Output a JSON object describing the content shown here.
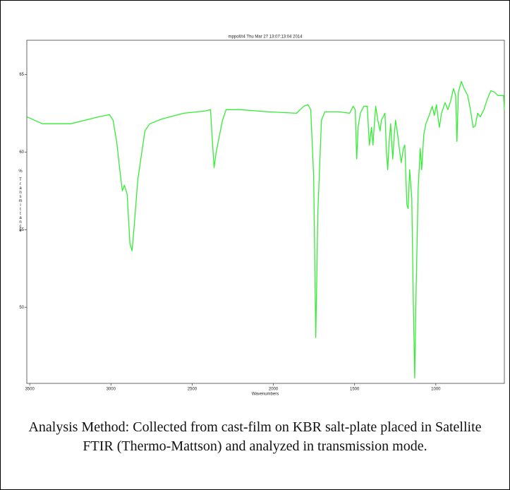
{
  "chart_data": {
    "type": "line",
    "title": "mppoll#4  Thu Mar 27 13:07:13:04 2014",
    "x_label": "Wavenumbers",
    "y_label": "% Transmittance",
    "color": "#33ee33",
    "xlim": [
      3518,
      578
    ],
    "ylim": [
      45.1,
      67.2
    ],
    "xticks": [
      3500,
      3000,
      2500,
      2000,
      1500,
      1000
    ],
    "yticks": [
      50,
      55,
      60,
      65
    ],
    "x": [
      3517,
      3422,
      3248,
      3074,
      3009,
      2987,
      2965,
      2943,
      2930,
      2917,
      2900,
      2883,
      2870,
      2857,
      2835,
      2813,
      2791,
      2761,
      2683,
      2552,
      2422,
      2387,
      2378,
      2365,
      2352,
      2335,
      2313,
      2291,
      2204,
      2030,
      1857,
      1835,
      1813,
      1787,
      1770,
      1752,
      1739,
      1726,
      1704,
      1683,
      1596,
      1530,
      1509,
      1496,
      1487,
      1478,
      1465,
      1443,
      1422,
      1409,
      1396,
      1387,
      1378,
      1370,
      1357,
      1343,
      1335,
      1313,
      1304,
      1296,
      1287,
      1278,
      1265,
      1257,
      1248,
      1235,
      1222,
      1213,
      1200,
      1191,
      1178,
      1170,
      1161,
      1148,
      1139,
      1130,
      1122,
      1109,
      1096,
      1087,
      1074,
      1061,
      1039,
      1022,
      1009,
      996,
      987,
      978,
      965,
      943,
      926,
      909,
      891,
      878,
      870,
      861,
      843,
      826,
      804,
      787,
      770,
      757,
      743,
      726,
      704,
      683,
      661,
      639,
      617,
      596,
      583,
      578
    ],
    "values": [
      62.27,
      61.82,
      61.82,
      62.27,
      62.41,
      62.05,
      60.68,
      58.64,
      57.5,
      57.86,
      57.27,
      54.09,
      53.64,
      55.23,
      58.18,
      59.77,
      61.36,
      61.82,
      62.14,
      62.5,
      62.64,
      62.73,
      61.14,
      59.0,
      60.0,
      60.91,
      62.05,
      62.73,
      62.73,
      62.59,
      62.5,
      62.73,
      62.95,
      63.05,
      62.73,
      58.41,
      48.05,
      56.14,
      62.05,
      62.59,
      62.59,
      62.5,
      62.95,
      62.73,
      59.55,
      61.59,
      62.5,
      62.95,
      62.95,
      60.45,
      61.59,
      60.45,
      61.82,
      62.95,
      62.05,
      61.36,
      62.05,
      62.5,
      60.0,
      58.86,
      60.68,
      61.82,
      59.55,
      60.91,
      62.05,
      61.14,
      60.0,
      59.32,
      60.23,
      60.45,
      56.59,
      56.36,
      58.86,
      57.05,
      50.68,
      45.45,
      50.68,
      57.5,
      60.23,
      58.86,
      61.14,
      61.82,
      62.41,
      62.95,
      62.36,
      63.05,
      62.27,
      61.59,
      62.5,
      63.18,
      62.73,
      63.27,
      64.09,
      63.64,
      60.68,
      63.86,
      64.55,
      64.09,
      63.64,
      62.73,
      61.59,
      61.68,
      62.5,
      62.27,
      62.73,
      63.41,
      63.95,
      63.86,
      63.64,
      63.64,
      63.64,
      62.73
    ]
  },
  "caption": "Analysis Method: Collected from cast-film on KBR salt-plate placed in Satellite FTIR (Thermo-Mattson) and analyzed in transmission mode."
}
